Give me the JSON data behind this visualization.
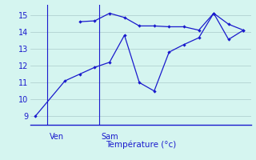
{
  "line1_x": [
    0,
    2,
    3,
    4,
    5,
    6,
    7,
    8,
    9,
    10,
    11,
    12,
    13,
    14
  ],
  "line1_y": [
    9.0,
    11.1,
    11.5,
    11.9,
    12.2,
    13.8,
    11.0,
    10.5,
    12.8,
    13.25,
    13.65,
    15.1,
    13.55,
    14.1
  ],
  "line2_x": [
    3,
    4,
    5,
    6,
    7,
    8,
    9,
    10,
    11,
    12,
    13,
    14
  ],
  "line2_y": [
    14.6,
    14.65,
    15.1,
    14.85,
    14.35,
    14.35,
    14.3,
    14.3,
    14.1,
    15.1,
    14.45,
    14.1
  ],
  "line_color": "#1a1acd",
  "bg_color": "#d5f5f0",
  "grid_color": "#aacaca",
  "axis_color": "#1a1acd",
  "xlabel": "Température (°c)",
  "ylim": [
    8.5,
    15.6
  ],
  "xlim": [
    -0.3,
    14.5
  ],
  "yticks": [
    9,
    10,
    11,
    12,
    13,
    14,
    15
  ],
  "ven_line_x": 0.8,
  "sam_line_x": 4.3,
  "ven_label": "Ven",
  "sam_label": "Sam",
  "tick_fontsize": 7.0,
  "xlabel_fontsize": 7.5,
  "label_color": "#1a1acd"
}
